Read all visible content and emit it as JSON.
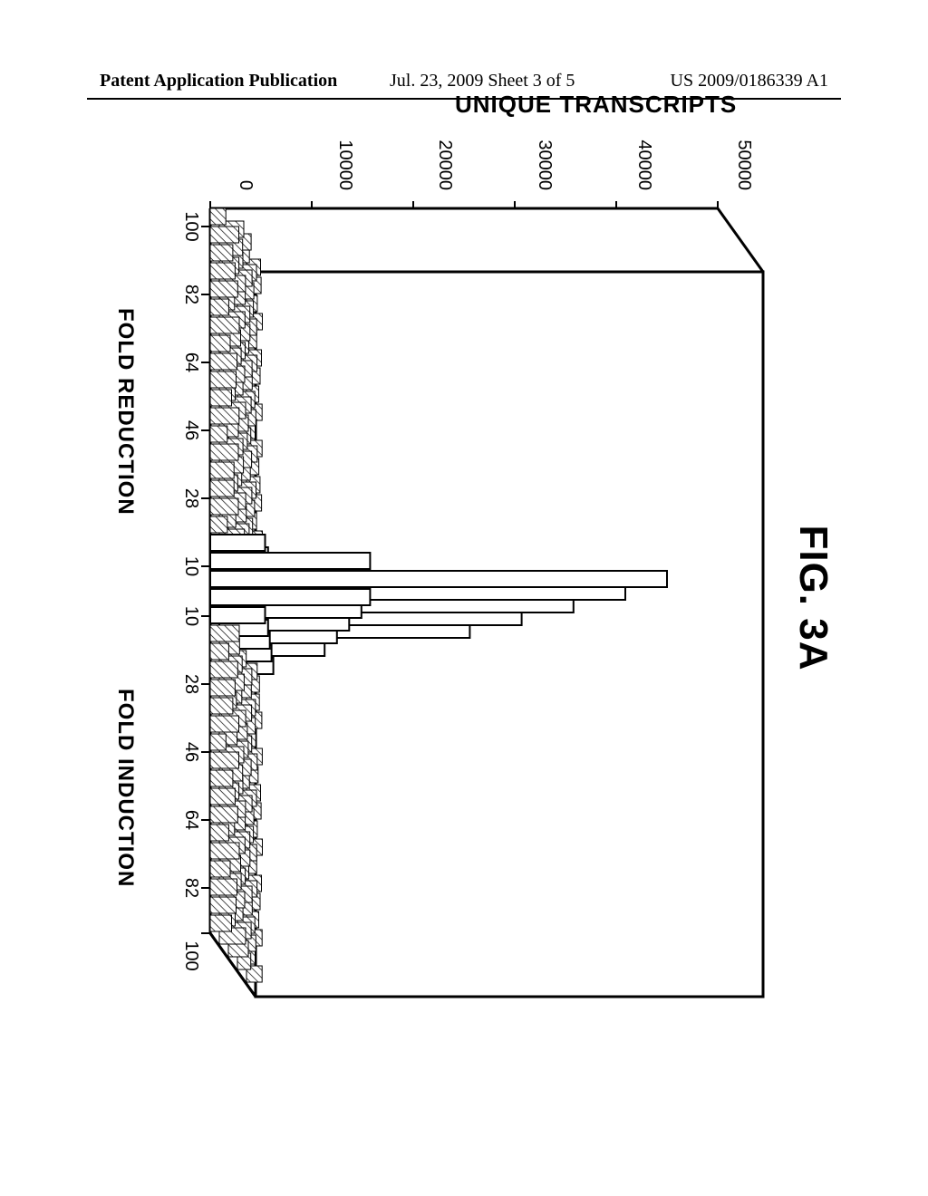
{
  "header": {
    "left": "Patent Application Publication",
    "center": "Jul. 23, 2009  Sheet 3 of 5",
    "right": "US 2009/0186339 A1"
  },
  "figure": {
    "title": "FIG. 3A",
    "y_axis": {
      "label": "UNIQUE TRANSCRIPTS",
      "min": 0,
      "max": 50000,
      "ticks": [
        0,
        10000,
        20000,
        30000,
        40000,
        50000
      ],
      "fontsize": 26
    },
    "x_axis": {
      "left_label": "FOLD REDUCTION",
      "right_label": "FOLD INDUCTION",
      "ticks_left_to_right": [
        100,
        82,
        64,
        46,
        28,
        10,
        10,
        28,
        46,
        64,
        82,
        100
      ],
      "fontsize": 24
    },
    "style": {
      "background_color": "#ffffff",
      "box_line_width": 3,
      "bar_fill": "#ffffff",
      "bar_hatch_color": "#000000",
      "bar_edge_color": "#000000",
      "hatch_angle_deg": 45,
      "depth_rows": 5,
      "perspective_dx": 14,
      "perspective_dy": 10
    },
    "type": "3d-bar-histogram",
    "comment": "Five depth rows of identical-shaped histograms. Tall central peak near fold≈1 (~45000 transcripts in front row, stepping down in back rows). Low hatched bars across the rest (~1000–3000).",
    "rows": [
      {
        "depth": 0,
        "peak_value": 45000,
        "peak_bin": 5,
        "base_value": 2200
      },
      {
        "depth": 1,
        "peak_value": 40000,
        "peak_bin": 5,
        "base_value": 2000
      },
      {
        "depth": 2,
        "peak_value": 34000,
        "peak_bin": 5,
        "base_value": 1800
      },
      {
        "depth": 3,
        "peak_value": 28000,
        "peak_bin": 5,
        "base_value": 1500
      },
      {
        "depth": 4,
        "peak_value": 22000,
        "peak_bin": 5,
        "base_value": 1200
      }
    ],
    "n_bins": 40
  }
}
